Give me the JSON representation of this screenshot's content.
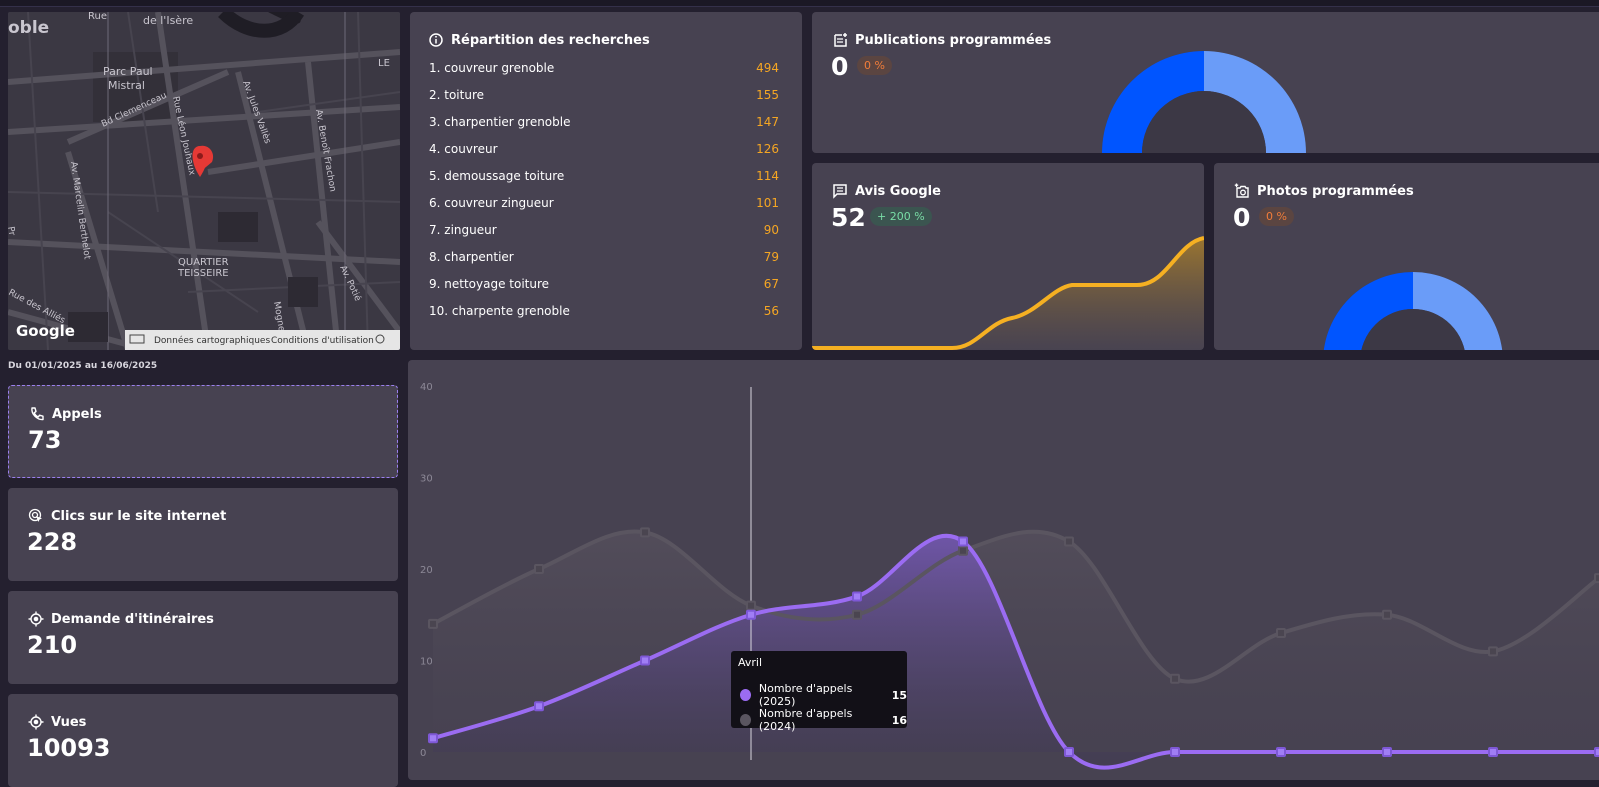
{
  "map": {
    "labels": [
      "oble",
      "Rue",
      "de l'Isère",
      "Parc Paul",
      "Mistral",
      "Bd Clemenceau",
      "Rue Léon Jouhaux",
      "Av. Jules Vallès",
      "Av. Benoît Frachon",
      "Av. Marcelin Berthelot",
      "Pr",
      "QUARTIER",
      "TEISSEIRE",
      "Rue des Alliés",
      "Av. Potié",
      "Mogne",
      "LE"
    ],
    "google_logo": "Google",
    "footer": [
      "Données cartographiques",
      "Conditions d'utilisation"
    ]
  },
  "searches": {
    "title": "Répartition des recherches",
    "items": [
      {
        "label": "1. couvreur grenoble",
        "value": "494"
      },
      {
        "label": "2. toiture",
        "value": "155"
      },
      {
        "label": "3. charpentier grenoble",
        "value": "147"
      },
      {
        "label": "4. couvreur",
        "value": "126"
      },
      {
        "label": "5. demoussage toiture",
        "value": "114"
      },
      {
        "label": "6. couvreur zingueur",
        "value": "101"
      },
      {
        "label": "7. zingueur",
        "value": "90"
      },
      {
        "label": "8. charpentier",
        "value": "79"
      },
      {
        "label": "9. nettoyage toiture",
        "value": "67"
      },
      {
        "label": "10. charpente grenoble",
        "value": "56"
      }
    ]
  },
  "publications": {
    "title": "Publications programmées",
    "value": "0",
    "badge": "0 %"
  },
  "avis": {
    "title": "Avis Google",
    "value": "52",
    "badge": "+ 200 %"
  },
  "photos": {
    "title": "Photos programmées",
    "value": "0",
    "badge": "0 %"
  },
  "daterange": "Du 01/01/2025 au 16/06/2025",
  "stats": [
    {
      "label": "Appels",
      "value": "73"
    },
    {
      "label": "Clics sur le site internet",
      "value": "228"
    },
    {
      "label": "Demande d'itinéraires",
      "value": "210"
    },
    {
      "label": "Vues",
      "value": "10093"
    }
  ],
  "colors": {
    "accent": "#9b6cf2",
    "series_2024": "#5a5560",
    "gold": "#f5b022",
    "blue": "#0055ff",
    "light_blue": "#6a9cf8"
  },
  "chart_data": {
    "type": "line",
    "y_ticks": [
      "40",
      "30",
      "20",
      "10",
      "0"
    ],
    "ylim": [
      0,
      40
    ],
    "x_count": 12,
    "series": [
      {
        "name": "Nombre d'appels (2025)",
        "values": [
          1.5,
          5,
          10,
          15,
          17,
          23,
          0,
          0,
          0,
          0,
          0,
          0
        ]
      },
      {
        "name": "Nombre d'appels (2024)",
        "values": [
          14,
          20,
          24,
          16,
          15,
          22,
          23,
          8,
          13,
          15,
          11,
          19
        ]
      }
    ],
    "tooltip": {
      "title": "Avril",
      "values": [
        "15",
        "16"
      ]
    }
  }
}
